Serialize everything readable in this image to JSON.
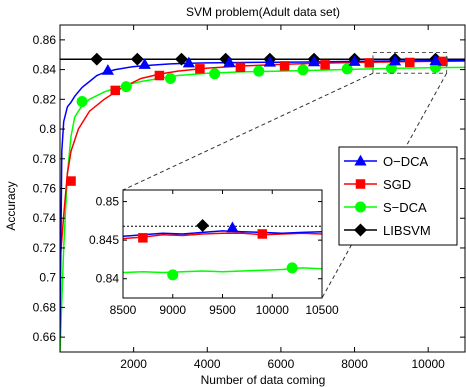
{
  "chart_data": {
    "type": "line",
    "title": "SVM problem(Adult data set)",
    "xlabel": "Number of data coming",
    "ylabel": "Accuracy",
    "xlim": [
      0,
      11000
    ],
    "ylim": [
      0.65,
      0.87
    ],
    "xticks": [
      2000,
      4000,
      6000,
      8000,
      10000
    ],
    "yticks": [
      0.66,
      0.68,
      0.7,
      0.72,
      0.74,
      0.76,
      0.78,
      0.8,
      0.82,
      0.84,
      0.86
    ],
    "ytick_labels": [
      "0.66",
      "0.68",
      "0.7",
      "0.72",
      "0.74",
      "0.76",
      "0.78",
      "0.8",
      "0.82",
      "0.84",
      "0.86"
    ],
    "legend_position": "right",
    "series": [
      {
        "name": "O−DCA",
        "color": "#0000ff",
        "marker": "triangle",
        "x": [
          0,
          50,
          100,
          200,
          300,
          400,
          600,
          800,
          1000,
          1200,
          1500,
          2000,
          2500,
          3000,
          3500,
          4000,
          5000,
          6000,
          7000,
          8000,
          9000,
          10000,
          11000
        ],
        "y": [
          0.66,
          0.785,
          0.805,
          0.815,
          0.818,
          0.822,
          0.828,
          0.832,
          0.836,
          0.838,
          0.84,
          0.842,
          0.843,
          0.8438,
          0.8442,
          0.8445,
          0.8448,
          0.845,
          0.8452,
          0.8455,
          0.8458,
          0.846,
          0.846
        ],
        "marker_x": [
          1300,
          2300,
          3500,
          4600,
          5700,
          6900,
          8000,
          9100,
          10200
        ],
        "marker_y": [
          0.8395,
          0.8435,
          0.8445,
          0.8448,
          0.845,
          0.8452,
          0.8455,
          0.8458,
          0.846
        ]
      },
      {
        "name": "SGD",
        "color": "#ff0000",
        "marker": "square",
        "x": [
          0,
          100,
          200,
          300,
          500,
          800,
          1200,
          1700,
          2200,
          2700,
          3200,
          4000,
          5000,
          6000,
          7000,
          8000,
          9000,
          10000,
          11000
        ],
        "y": [
          0.71,
          0.742,
          0.77,
          0.785,
          0.8,
          0.812,
          0.82,
          0.828,
          0.834,
          0.837,
          0.839,
          0.841,
          0.8425,
          0.8435,
          0.8443,
          0.8448,
          0.8452,
          0.8455,
          0.8458
        ],
        "marker_x": [
          300,
          1500,
          2700,
          3800,
          4900,
          6100,
          7200,
          8400,
          9500,
          10400
        ],
        "marker_y": [
          0.765,
          0.826,
          0.836,
          0.8405,
          0.8415,
          0.8425,
          0.8432,
          0.8445,
          0.8448,
          0.8455
        ]
      },
      {
        "name": "S−DCA",
        "color": "#00ff00",
        "marker": "circle",
        "x": [
          0,
          100,
          200,
          300,
          400,
          600,
          800,
          1200,
          1700,
          2200,
          2700,
          3200,
          4000,
          5000,
          6000,
          7000,
          8000,
          9000,
          10000,
          11000
        ],
        "y": [
          0.65,
          0.72,
          0.77,
          0.795,
          0.808,
          0.816,
          0.82,
          0.825,
          0.829,
          0.832,
          0.834,
          0.836,
          0.8375,
          0.8385,
          0.839,
          0.8395,
          0.8402,
          0.8408,
          0.8412,
          0.8415
        ],
        "marker_x": [
          600,
          1800,
          3000,
          4200,
          5400,
          6600,
          7800,
          9000,
          10200
        ],
        "marker_y": [
          0.8185,
          0.8285,
          0.834,
          0.8372,
          0.839,
          0.8398,
          0.8405,
          0.8408,
          0.8415
        ]
      },
      {
        "name": "LIBSVM",
        "color": "#000000",
        "marker": "diamond",
        "x": [
          0,
          11000
        ],
        "y": [
          0.847,
          0.847
        ],
        "marker_x": [
          1000,
          2100,
          3300,
          4500,
          5700,
          6900,
          8000,
          9100,
          10200
        ],
        "marker_y": [
          0.847,
          0.847,
          0.847,
          0.847,
          0.847,
          0.847,
          0.847,
          0.847,
          0.847
        ]
      }
    ],
    "inset": {
      "xlim": [
        8500,
        10500
      ],
      "ylim": [
        0.8375,
        0.8515
      ],
      "xticks": [
        8500,
        9000,
        9500,
        10000,
        10500
      ],
      "yticks": [
        0.84,
        0.845,
        0.85
      ],
      "ytick_labels": [
        "0.84",
        "0.845",
        "0.85"
      ],
      "reference_line": 0.8468,
      "series": [
        {
          "name": "O−DCA",
          "x": [
            8500,
            8700,
            8900,
            9100,
            9300,
            9500,
            9700,
            9900,
            10100,
            10300,
            10500
          ],
          "y": [
            0.8455,
            0.8457,
            0.8459,
            0.8458,
            0.846,
            0.8462,
            0.8461,
            0.846,
            0.8459,
            0.846,
            0.8461
          ],
          "marker_x": [
            9600
          ],
          "marker_y": [
            0.8466
          ]
        },
        {
          "name": "SGD",
          "x": [
            8500,
            8700,
            8900,
            9100,
            9300,
            9500,
            9700,
            9900,
            10100,
            10300,
            10500
          ],
          "y": [
            0.8452,
            0.8454,
            0.8457,
            0.8456,
            0.8458,
            0.8459,
            0.8459,
            0.8457,
            0.8458,
            0.8459,
            0.8458
          ],
          "marker_x": [
            8700,
            9900
          ],
          "marker_y": [
            0.8453,
            0.8458
          ]
        },
        {
          "name": "S−DCA",
          "x": [
            8500,
            8700,
            8900,
            9100,
            9300,
            9500,
            9700,
            9900,
            10100,
            10300,
            10500
          ],
          "y": [
            0.8408,
            0.8409,
            0.8408,
            0.8409,
            0.841,
            0.8409,
            0.841,
            0.8411,
            0.8412,
            0.8414,
            0.8413
          ],
          "marker_x": [
            9000,
            10200
          ],
          "marker_y": [
            0.8405,
            0.8414
          ]
        },
        {
          "name": "LIBSVM",
          "x": [],
          "y": [],
          "marker_x": [
            9300
          ],
          "marker_y": [
            0.8469
          ]
        }
      ]
    }
  }
}
